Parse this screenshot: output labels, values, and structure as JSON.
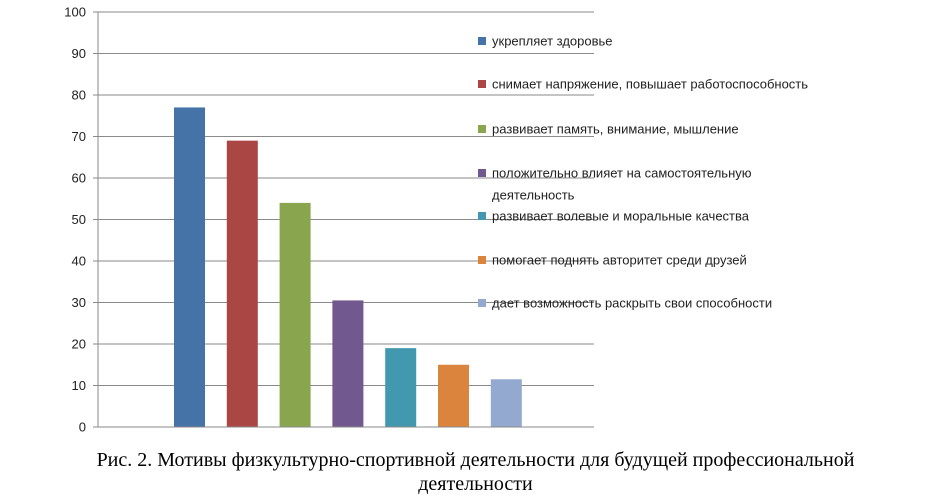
{
  "chart_data": {
    "type": "bar",
    "ylim": [
      0,
      100
    ],
    "yticks": [
      0,
      10,
      20,
      30,
      40,
      50,
      60,
      70,
      80,
      90,
      100
    ],
    "grid": true,
    "legend_position": "right",
    "series": [
      {
        "name": "укрепляет здоровье",
        "value": 77,
        "color": "#4572A7"
      },
      {
        "name": "снимает напряжение, повышает работоспособность",
        "value": 69,
        "color": "#AA4643"
      },
      {
        "name": "развивает память, внимание, мышление",
        "value": 54,
        "color": "#89A54E"
      },
      {
        "name": "положительно влияет на самостоятельную деятельность",
        "value": 30.5,
        "color": "#71588F"
      },
      {
        "name": "развивает волевые и моральные качества",
        "value": 19,
        "color": "#4198AF"
      },
      {
        "name": "помогает поднять авторитет среди друзей",
        "value": 15,
        "color": "#DB843D"
      },
      {
        "name": "дает возможность раскрыть свои способности",
        "value": 11.5,
        "color": "#93A9CF"
      }
    ]
  },
  "caption": {
    "line1": "Рис. 2. Мотивы физкультурно-спортивной деятельности для будущей профессиональной",
    "line2": "деятельности"
  }
}
